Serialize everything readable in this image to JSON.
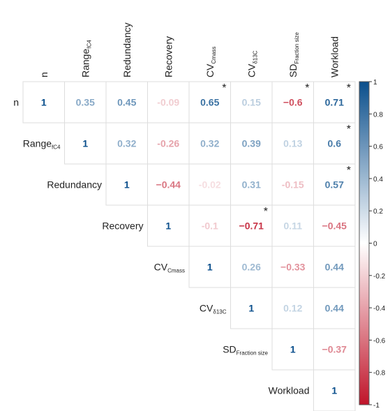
{
  "chart_data": {
    "type": "heatmap",
    "subtype": "upper-triangular correlation matrix",
    "variables": [
      {
        "id": "n",
        "text": "n",
        "sub": ""
      },
      {
        "id": "range",
        "text": "Range",
        "sub": "fC4"
      },
      {
        "id": "redundancy",
        "text": "Redundancy",
        "sub": ""
      },
      {
        "id": "recovery",
        "text": "Recovery",
        "sub": ""
      },
      {
        "id": "cv_cmass",
        "text": "CV",
        "sub": "Cmass"
      },
      {
        "id": "cv_d13c",
        "text": "CV",
        "sub": "δ13C"
      },
      {
        "id": "sd_fraction",
        "text": "SD",
        "sub": "Fraction size"
      },
      {
        "id": "workload",
        "text": "Workload",
        "sub": ""
      }
    ],
    "matrix": [
      [
        1,
        0.35,
        0.45,
        -0.09,
        0.65,
        0.15,
        -0.6,
        0.71
      ],
      [
        null,
        1,
        0.32,
        -0.26,
        0.32,
        0.39,
        0.13,
        0.6
      ],
      [
        null,
        null,
        1,
        -0.44,
        -0.02,
        0.31,
        -0.15,
        0.57
      ],
      [
        null,
        null,
        null,
        1,
        -0.1,
        -0.71,
        0.11,
        -0.45
      ],
      [
        null,
        null,
        null,
        null,
        1,
        0.26,
        -0.33,
        0.44
      ],
      [
        null,
        null,
        null,
        null,
        null,
        1,
        0.12,
        0.44
      ],
      [
        null,
        null,
        null,
        null,
        null,
        null,
        1,
        -0.37
      ],
      [
        null,
        null,
        null,
        null,
        null,
        null,
        null,
        1
      ]
    ],
    "labels": [
      [
        "1",
        "0.35",
        "0.45",
        "-0.09",
        "0.65",
        "0.15",
        "−0.6",
        "0.71"
      ],
      [
        null,
        "1",
        "0.32",
        "-0.26",
        "0.32",
        "0.39",
        "0.13",
        "0.6"
      ],
      [
        null,
        null,
        "1",
        "−0.44",
        "-0.02",
        "0.31",
        "-0.15",
        "0.57"
      ],
      [
        null,
        null,
        null,
        "1",
        "-0.1",
        "−0.71",
        "0.11",
        "−0.45"
      ],
      [
        null,
        null,
        null,
        null,
        "1",
        "0.26",
        "−0.33",
        "0.44"
      ],
      [
        null,
        null,
        null,
        null,
        null,
        "1",
        "0.12",
        "0.44"
      ],
      [
        null,
        null,
        null,
        null,
        null,
        null,
        "1",
        "−0.37"
      ],
      [
        null,
        null,
        null,
        null,
        null,
        null,
        null,
        "1"
      ]
    ],
    "significant": [
      [
        0,
        4
      ],
      [
        0,
        6
      ],
      [
        0,
        7
      ],
      [
        1,
        7
      ],
      [
        2,
        7
      ],
      [
        3,
        5
      ]
    ],
    "significance_marker": "*",
    "colorbar": {
      "range": [
        -1,
        1
      ],
      "ticks": [
        1,
        0.8,
        0.6,
        0.4,
        0.2,
        0,
        -0.2,
        -0.4,
        -0.6,
        -0.8,
        -1
      ],
      "tick_labels": [
        "1",
        "0.8",
        "0.6",
        "0.4",
        "0.2",
        "0",
        "-0.2",
        "-0.4",
        "-0.6",
        "-0.8",
        "-1"
      ],
      "position": "right"
    },
    "colors": {
      "negative": "#c0152a",
      "neutral": "#ffffff",
      "positive": "#0b4f8c",
      "grid": "#dddddd"
    }
  }
}
